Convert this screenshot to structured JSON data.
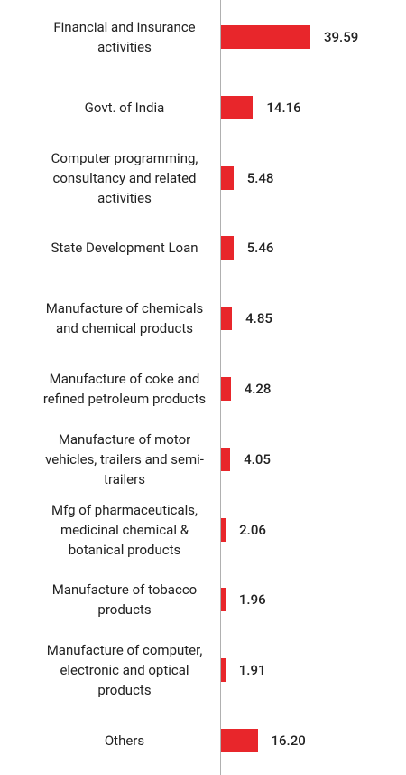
{
  "chart_data": {
    "type": "bar",
    "orientation": "horizontal",
    "color": "#e8262b",
    "categories": [
      "Financial and insurance activities",
      "Govt. of India",
      "Computer programming, consultancy and related activities",
      "State Development Loan",
      "Manufacture of chemicals and chemical products",
      "Manufacture of coke and refined petroleum products",
      "Manufacture of motor vehicles, trailers and semi-trailers",
      "Mfg of pharmaceuticals, medicinal chemical & botanical products",
      "Manufacture of tobacco products",
      "Manufacture of computer, electronic and optical products",
      "Others"
    ],
    "values": [
      39.59,
      14.16,
      5.48,
      5.46,
      4.85,
      4.28,
      4.05,
      2.06,
      1.96,
      1.91,
      16.2
    ],
    "value_labels": [
      "39.59",
      "14.16",
      "5.48",
      "5.46",
      "4.85",
      "4.28",
      "4.05",
      "2.06",
      "1.96",
      "1.91",
      "16.20"
    ]
  }
}
